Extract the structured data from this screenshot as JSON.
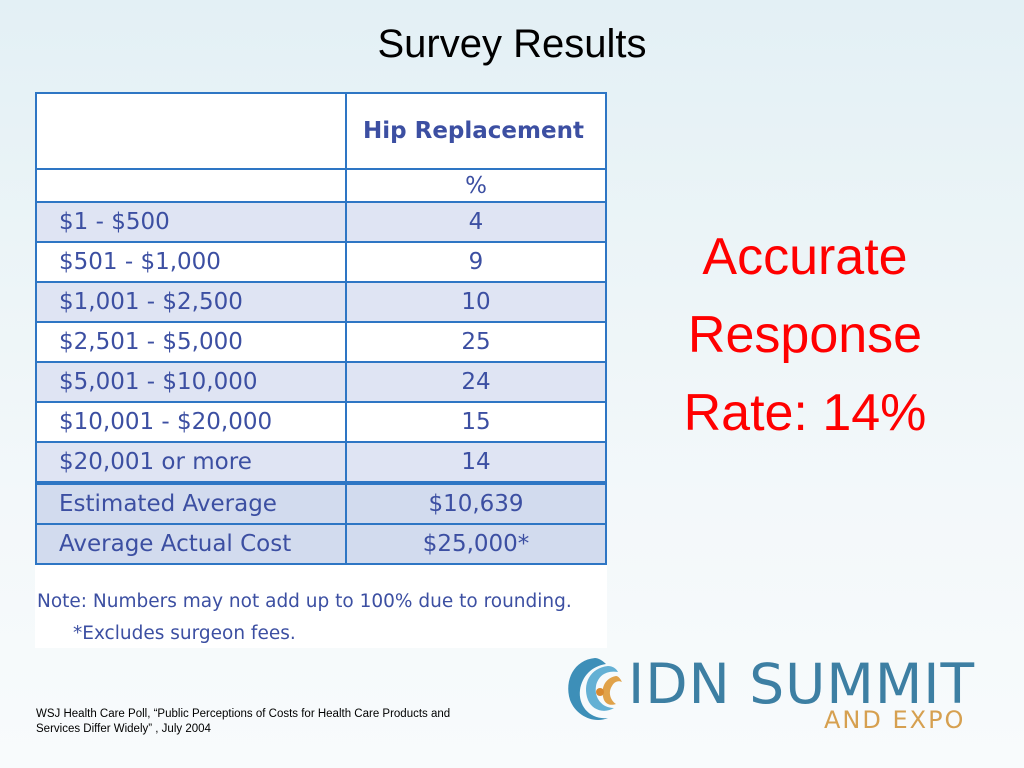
{
  "slide": {
    "title": "Survey Results"
  },
  "table": {
    "header": "Hip Replacement",
    "unit": "%",
    "rows": [
      {
        "label": "$1 - $500",
        "value": "4"
      },
      {
        "label": "$501 - $1,000",
        "value": "9"
      },
      {
        "label": "$1,001 - $2,500",
        "value": "10"
      },
      {
        "label": "$2,501 - $5,000",
        "value": "25"
      },
      {
        "label": "$5,001 - $10,000",
        "value": "24"
      },
      {
        "label": "$10,001 - $20,000",
        "value": "15"
      },
      {
        "label": "$20,001 or more",
        "value": "14"
      }
    ],
    "summary": [
      {
        "label": "Estimated Average",
        "value": "$10,639"
      },
      {
        "label": "Average Actual Cost",
        "value": "$25,000*"
      }
    ],
    "note_line1": "Note: Numbers may not add up to 100% due to rounding.",
    "note_line2": "*Excludes surgeon fees."
  },
  "callout": {
    "line1": "Accurate",
    "line2": "Response",
    "line3": "Rate: 14%"
  },
  "source": {
    "line1": "WSJ Health Care Poll, “Public Perceptions of Costs for Health Care Products and",
    "line2": "Services Differ Widely” , July 2004"
  },
  "logo": {
    "name": "IDN SUMMIT",
    "sub": "AND EXPO",
    "icon": "swirl-logo-icon"
  },
  "colors": {
    "table_text": "#3c4fa2",
    "table_border": "#2e76c4",
    "callout": "#ff0000",
    "logo_blue": "#3d7fa3",
    "logo_gold": "#d6a050"
  }
}
